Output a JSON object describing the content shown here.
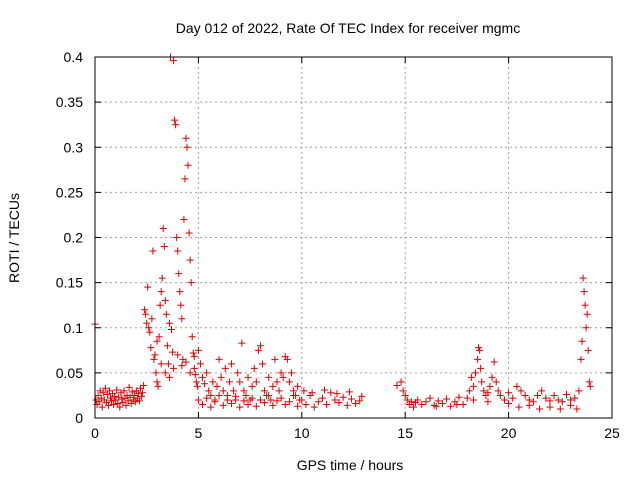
{
  "chart_data": {
    "type": "scatter",
    "title": "Day 012 of 2022, Rate Of TEC Index for receiver mgmc",
    "xlabel": "GPS time / hours",
    "ylabel": "ROTI / TECUs",
    "xlim": [
      0,
      25
    ],
    "ylim": [
      0,
      0.4
    ],
    "x_ticks": [
      0,
      5,
      10,
      15,
      20,
      25
    ],
    "y_ticks": [
      0,
      0.05,
      0.1,
      0.15,
      0.2,
      0.25,
      0.3,
      0.35,
      0.4
    ],
    "x_tick_labels": [
      "0",
      "5",
      "10",
      "15",
      "20",
      "25"
    ],
    "y_tick_labels": [
      "0",
      "0.05",
      "0.1",
      "0.15",
      "0.2",
      "0.25",
      "0.3",
      "0.35",
      "0.4"
    ],
    "grid": true,
    "marker": "+",
    "marker_color": "#e00000",
    "points": [
      [
        0.0,
        0.104
      ],
      [
        0.05,
        0.02
      ],
      [
        0.1,
        0.015
      ],
      [
        0.15,
        0.025
      ],
      [
        0.2,
        0.018
      ],
      [
        0.25,
        0.03
      ],
      [
        0.3,
        0.022
      ],
      [
        0.35,
        0.012
      ],
      [
        0.4,
        0.028
      ],
      [
        0.45,
        0.02
      ],
      [
        0.5,
        0.033
      ],
      [
        0.55,
        0.017
      ],
      [
        0.6,
        0.026
      ],
      [
        0.65,
        0.014
      ],
      [
        0.7,
        0.03
      ],
      [
        0.75,
        0.022
      ],
      [
        0.8,
        0.019
      ],
      [
        0.85,
        0.027
      ],
      [
        0.9,
        0.015
      ],
      [
        0.95,
        0.024
      ],
      [
        1.0,
        0.02
      ],
      [
        1.05,
        0.031
      ],
      [
        1.1,
        0.016
      ],
      [
        1.15,
        0.023
      ],
      [
        1.2,
        0.012
      ],
      [
        1.25,
        0.028
      ],
      [
        1.3,
        0.021
      ],
      [
        1.35,
        0.017
      ],
      [
        1.4,
        0.03
      ],
      [
        1.45,
        0.022
      ],
      [
        1.5,
        0.014
      ],
      [
        1.55,
        0.025
      ],
      [
        1.6,
        0.019
      ],
      [
        1.65,
        0.034
      ],
      [
        1.7,
        0.023
      ],
      [
        1.75,
        0.016
      ],
      [
        1.8,
        0.029
      ],
      [
        1.85,
        0.02
      ],
      [
        1.9,
        0.025
      ],
      [
        1.95,
        0.018
      ],
      [
        2.0,
        0.03
      ],
      [
        2.05,
        0.022
      ],
      [
        2.1,
        0.027
      ],
      [
        2.15,
        0.019
      ],
      [
        2.2,
        0.033
      ],
      [
        2.25,
        0.024
      ],
      [
        2.3,
        0.028
      ],
      [
        2.35,
        0.036
      ],
      [
        2.4,
        0.12
      ],
      [
        2.45,
        0.115
      ],
      [
        2.5,
        0.105
      ],
      [
        2.55,
        0.145
      ],
      [
        2.6,
        0.1
      ],
      [
        2.65,
        0.095
      ],
      [
        2.7,
        0.078
      ],
      [
        2.75,
        0.11
      ],
      [
        2.8,
        0.185
      ],
      [
        2.85,
        0.065
      ],
      [
        2.9,
        0.07
      ],
      [
        2.95,
        0.05
      ],
      [
        3.0,
        0.04
      ],
      [
        3.05,
        0.035
      ],
      [
        3.1,
        0.09
      ],
      [
        3.15,
        0.125
      ],
      [
        3.2,
        0.14
      ],
      [
        3.25,
        0.155
      ],
      [
        3.3,
        0.21
      ],
      [
        3.35,
        0.19
      ],
      [
        3.4,
        0.13
      ],
      [
        3.45,
        0.115
      ],
      [
        3.5,
        0.08
      ],
      [
        3.55,
        0.06
      ],
      [
        3.6,
        0.105
      ],
      [
        3.65,
        0.4
      ],
      [
        3.7,
        0.098
      ],
      [
        3.75,
        0.073
      ],
      [
        3.8,
        0.396
      ],
      [
        3.85,
        0.33
      ],
      [
        3.9,
        0.325
      ],
      [
        3.95,
        0.2
      ],
      [
        4.0,
        0.185
      ],
      [
        4.05,
        0.16
      ],
      [
        4.1,
        0.14
      ],
      [
        4.15,
        0.125
      ],
      [
        4.2,
        0.11
      ],
      [
        4.25,
        0.065
      ],
      [
        4.3,
        0.22
      ],
      [
        4.35,
        0.265
      ],
      [
        4.4,
        0.31
      ],
      [
        4.45,
        0.3
      ],
      [
        4.5,
        0.28
      ],
      [
        4.55,
        0.205
      ],
      [
        4.6,
        0.175
      ],
      [
        4.65,
        0.15
      ],
      [
        4.7,
        0.09
      ],
      [
        4.75,
        0.072
      ],
      [
        4.8,
        0.055
      ],
      [
        4.85,
        0.048
      ],
      [
        4.9,
        0.04
      ],
      [
        4.95,
        0.035
      ],
      [
        3.0,
        0.085
      ],
      [
        3.2,
        0.06
      ],
      [
        3.4,
        0.05
      ],
      [
        3.6,
        0.045
      ],
      [
        3.8,
        0.055
      ],
      [
        4.0,
        0.07
      ],
      [
        4.2,
        0.058
      ],
      [
        4.4,
        0.062
      ],
      [
        4.6,
        0.05
      ],
      [
        4.8,
        0.068
      ],
      [
        5.0,
        0.075
      ],
      [
        5.1,
        0.06
      ],
      [
        5.2,
        0.045
      ],
      [
        5.3,
        0.038
      ],
      [
        5.4,
        0.05
      ],
      [
        5.5,
        0.03
      ],
      [
        5.6,
        0.025
      ],
      [
        5.7,
        0.04
      ],
      [
        5.8,
        0.02
      ],
      [
        5.9,
        0.035
      ],
      [
        6.0,
        0.065
      ],
      [
        6.1,
        0.045
      ],
      [
        6.2,
        0.03
      ],
      [
        6.3,
        0.055
      ],
      [
        6.4,
        0.025
      ],
      [
        6.5,
        0.04
      ],
      [
        6.6,
        0.06
      ],
      [
        6.7,
        0.03
      ],
      [
        6.8,
        0.02
      ],
      [
        6.9,
        0.05
      ],
      [
        7.0,
        0.04
      ],
      [
        7.1,
        0.083
      ],
      [
        7.2,
        0.03
      ],
      [
        7.3,
        0.025
      ],
      [
        7.4,
        0.045
      ],
      [
        7.5,
        0.02
      ],
      [
        7.6,
        0.035
      ],
      [
        7.7,
        0.055
      ],
      [
        7.8,
        0.04
      ],
      [
        7.9,
        0.075
      ],
      [
        8.0,
        0.08
      ],
      [
        8.1,
        0.06
      ],
      [
        8.2,
        0.03
      ],
      [
        8.3,
        0.025
      ],
      [
        8.4,
        0.045
      ],
      [
        8.5,
        0.02
      ],
      [
        8.6,
        0.035
      ],
      [
        8.7,
        0.065
      ],
      [
        8.8,
        0.04
      ],
      [
        8.9,
        0.03
      ],
      [
        9.0,
        0.05
      ],
      [
        9.1,
        0.045
      ],
      [
        9.2,
        0.068
      ],
      [
        9.3,
        0.065
      ],
      [
        9.4,
        0.04
      ],
      [
        9.5,
        0.05
      ],
      [
        9.6,
        0.03
      ],
      [
        9.7,
        0.025
      ],
      [
        9.8,
        0.035
      ],
      [
        9.9,
        0.02
      ],
      [
        5.0,
        0.02
      ],
      [
        5.2,
        0.015
      ],
      [
        5.4,
        0.022
      ],
      [
        5.6,
        0.012
      ],
      [
        5.8,
        0.018
      ],
      [
        6.0,
        0.025
      ],
      [
        6.2,
        0.014
      ],
      [
        6.4,
        0.02
      ],
      [
        6.6,
        0.016
      ],
      [
        6.8,
        0.024
      ],
      [
        7.0,
        0.012
      ],
      [
        7.2,
        0.019
      ],
      [
        7.4,
        0.015
      ],
      [
        7.6,
        0.022
      ],
      [
        7.8,
        0.013
      ],
      [
        8.0,
        0.02
      ],
      [
        8.2,
        0.017
      ],
      [
        8.4,
        0.025
      ],
      [
        8.6,
        0.014
      ],
      [
        8.8,
        0.019
      ],
      [
        9.0,
        0.022
      ],
      [
        9.2,
        0.015
      ],
      [
        9.4,
        0.018
      ],
      [
        9.6,
        0.025
      ],
      [
        9.8,
        0.013
      ],
      [
        10.0,
        0.02
      ],
      [
        10.2,
        0.015
      ],
      [
        10.4,
        0.025
      ],
      [
        10.6,
        0.012
      ],
      [
        10.8,
        0.018
      ],
      [
        11.0,
        0.022
      ],
      [
        11.2,
        0.015
      ],
      [
        11.4,
        0.028
      ],
      [
        11.6,
        0.02
      ],
      [
        11.8,
        0.017
      ],
      [
        12.0,
        0.023
      ],
      [
        12.2,
        0.014
      ],
      [
        12.4,
        0.021
      ],
      [
        12.6,
        0.016
      ],
      [
        12.8,
        0.019
      ],
      [
        10.1,
        0.03
      ],
      [
        10.5,
        0.028
      ],
      [
        11.1,
        0.031
      ],
      [
        11.7,
        0.027
      ],
      [
        12.3,
        0.029
      ],
      [
        12.9,
        0.024
      ],
      [
        14.6,
        0.036
      ],
      [
        14.8,
        0.04
      ],
      [
        14.9,
        0.03
      ],
      [
        15.0,
        0.025
      ],
      [
        15.1,
        0.02
      ],
      [
        15.2,
        0.015
      ],
      [
        15.3,
        0.018
      ],
      [
        15.4,
        0.012
      ],
      [
        15.6,
        0.02
      ],
      [
        15.8,
        0.015
      ],
      [
        16.0,
        0.018
      ],
      [
        16.2,
        0.022
      ],
      [
        16.4,
        0.014
      ],
      [
        16.6,
        0.019
      ],
      [
        16.8,
        0.016
      ],
      [
        17.0,
        0.021
      ],
      [
        17.2,
        0.013
      ],
      [
        17.4,
        0.018
      ],
      [
        17.6,
        0.023
      ],
      [
        17.8,
        0.015
      ],
      [
        18.0,
        0.022
      ],
      [
        18.1,
        0.03
      ],
      [
        18.2,
        0.045
      ],
      [
        18.3,
        0.035
      ],
      [
        18.4,
        0.05
      ],
      [
        18.5,
        0.065
      ],
      [
        18.55,
        0.078
      ],
      [
        18.6,
        0.075
      ],
      [
        18.65,
        0.055
      ],
      [
        18.7,
        0.04
      ],
      [
        18.8,
        0.03
      ],
      [
        18.9,
        0.025
      ],
      [
        19.0,
        0.028
      ],
      [
        19.1,
        0.035
      ],
      [
        19.2,
        0.045
      ],
      [
        19.3,
        0.062
      ],
      [
        19.4,
        0.04
      ],
      [
        19.5,
        0.03
      ],
      [
        19.6,
        0.025
      ],
      [
        19.8,
        0.02
      ],
      [
        20.0,
        0.028
      ],
      [
        20.2,
        0.022
      ],
      [
        20.4,
        0.035
      ],
      [
        20.6,
        0.03
      ],
      [
        20.8,
        0.025
      ],
      [
        21.0,
        0.02
      ],
      [
        21.2,
        0.018
      ],
      [
        21.4,
        0.025
      ],
      [
        21.6,
        0.03
      ],
      [
        21.8,
        0.022
      ],
      [
        22.0,
        0.019
      ],
      [
        22.2,
        0.025
      ],
      [
        22.4,
        0.02
      ],
      [
        22.6,
        0.018
      ],
      [
        22.8,
        0.026
      ],
      [
        23.0,
        0.02
      ],
      [
        23.2,
        0.022
      ],
      [
        23.4,
        0.03
      ],
      [
        23.5,
        0.065
      ],
      [
        23.55,
        0.085
      ],
      [
        23.6,
        0.155
      ],
      [
        23.65,
        0.14
      ],
      [
        23.7,
        0.125
      ],
      [
        23.75,
        0.1
      ],
      [
        23.8,
        0.115
      ],
      [
        23.85,
        0.075
      ],
      [
        23.9,
        0.04
      ],
      [
        23.95,
        0.035
      ],
      [
        15.5,
        0.017
      ],
      [
        16.5,
        0.013
      ],
      [
        17.5,
        0.015
      ],
      [
        18.3,
        0.02
      ],
      [
        19.0,
        0.018
      ],
      [
        20.0,
        0.016
      ],
      [
        21.0,
        0.014
      ],
      [
        22.0,
        0.012
      ],
      [
        23.0,
        0.014
      ],
      [
        20.5,
        0.012
      ],
      [
        21.5,
        0.01
      ],
      [
        22.5,
        0.01
      ],
      [
        23.3,
        0.01
      ]
    ]
  }
}
